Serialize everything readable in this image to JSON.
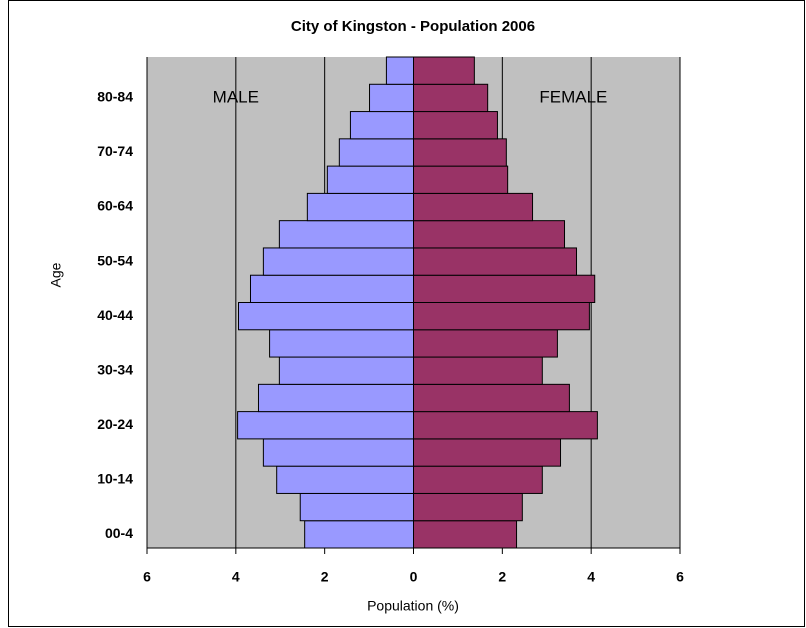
{
  "chart_data": {
    "type": "pyramid",
    "title": "City of Kingston - Population 2006",
    "x_label": "Population (%)",
    "y_label": "Age",
    "categories": [
      "00-4",
      null,
      "10-14",
      null,
      "20-24",
      null,
      "30-34",
      null,
      "40-44",
      null,
      "50-54",
      null,
      "60-64",
      null,
      "70-74",
      null,
      "80-84",
      null
    ],
    "series": [
      {
        "name": "MALE",
        "color": "#9999ff",
        "side": "left",
        "values": [
          2.45,
          2.55,
          3.08,
          3.38,
          3.96,
          3.49,
          3.02,
          3.24,
          3.94,
          3.67,
          3.38,
          3.02,
          2.39,
          1.94,
          1.67,
          1.42,
          0.99,
          0.61
        ]
      },
      {
        "name": "FEMALE",
        "color": "#993366",
        "side": "right",
        "values": [
          2.32,
          2.45,
          2.9,
          3.31,
          4.14,
          3.51,
          2.9,
          3.24,
          3.96,
          4.08,
          3.67,
          3.4,
          2.68,
          2.12,
          2.09,
          1.89,
          1.67,
          1.37
        ]
      }
    ],
    "xlim": [
      -6,
      6
    ],
    "xticks": [
      {
        "value": -6,
        "label": "6"
      },
      {
        "value": -4,
        "label": "4"
      },
      {
        "value": -2,
        "label": "2"
      },
      0,
      2,
      4,
      6
    ],
    "grid": true,
    "plot_background": "#c0c0c0"
  }
}
